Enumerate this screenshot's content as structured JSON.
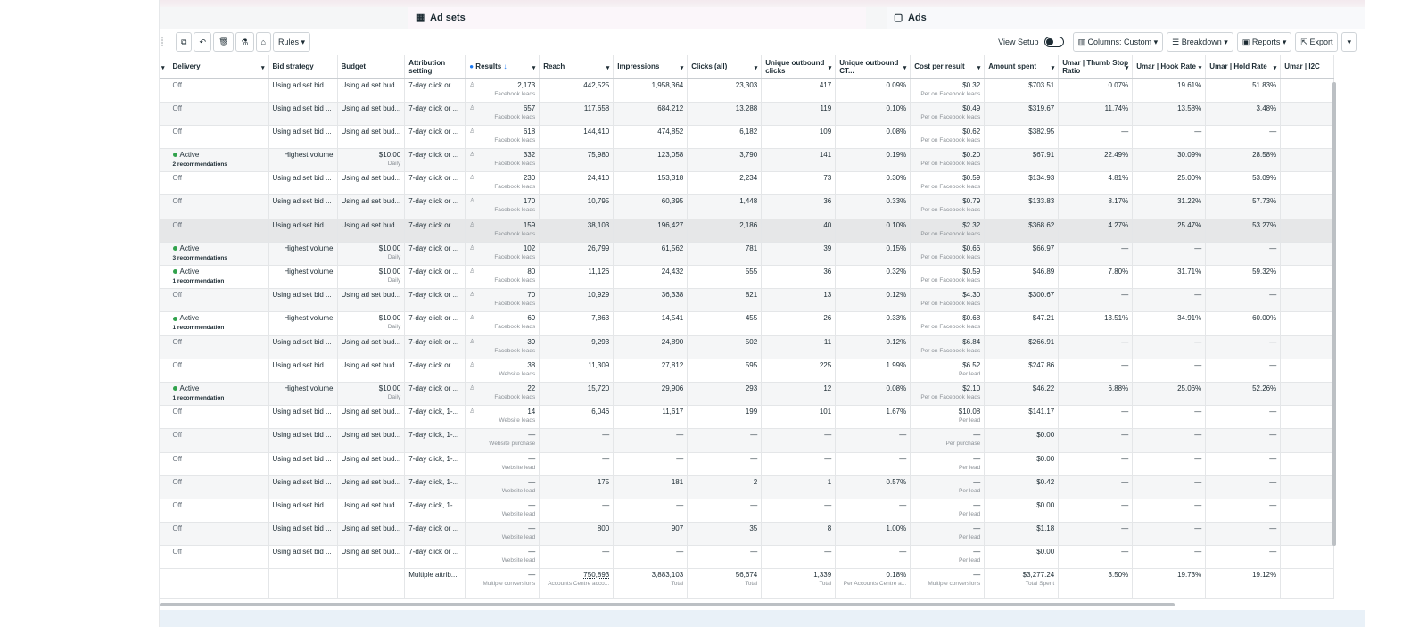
{
  "tabs": {
    "adsets_label": "Ad sets",
    "ads_label": "Ads"
  },
  "toolbar": {
    "rules_label": "Rules",
    "view_setup_label": "View Setup",
    "columns_label": "Columns: Custom",
    "breakdown_label": "Breakdown",
    "reports_label": "Reports",
    "export_label": "Export"
  },
  "headers": [
    "Delivery",
    "Bid strategy",
    "Budget",
    "Attribution setting",
    "Results",
    "Reach",
    "Impressions",
    "Clicks (all)",
    "Unique outbound clicks",
    "Unique outbound CT...",
    "Cost per result",
    "Amount spent",
    "Umar | Thumb Stop Ratio",
    "Umar | Hook Rate",
    "Umar | Hold Rate",
    "Umar | I2C"
  ],
  "rows": [
    {
      "delivery": "Off",
      "active": false,
      "reco": "",
      "bid": "Using ad set bid ...",
      "budget": "Using ad set bud...",
      "budget_sub": "",
      "attr": "7-day click or ...",
      "results": "2,173",
      "results_sub": "Facebook leads",
      "reach": "442,525",
      "impr": "1,958,364",
      "clicks": "23,303",
      "uoc": "417",
      "uctr": "0.09%",
      "cpr": "$0.32",
      "cpr_sub": "Per on Facebook leads",
      "spent": "$703.51",
      "thumb": "0.07%",
      "hook": "19.61%",
      "hold": "51.83%"
    },
    {
      "delivery": "Off",
      "active": false,
      "reco": "",
      "bid": "Using ad set bid ...",
      "budget": "Using ad set bud...",
      "budget_sub": "",
      "attr": "7-day click or ...",
      "results": "657",
      "results_sub": "Facebook leads",
      "reach": "117,658",
      "impr": "684,212",
      "clicks": "13,288",
      "uoc": "119",
      "uctr": "0.10%",
      "cpr": "$0.49",
      "cpr_sub": "Per on Facebook leads",
      "spent": "$319.67",
      "thumb": "11.74%",
      "hook": "13.58%",
      "hold": "3.48%"
    },
    {
      "delivery": "Off",
      "active": false,
      "reco": "",
      "bid": "Using ad set bid ...",
      "budget": "Using ad set bud...",
      "budget_sub": "",
      "attr": "7-day click or ...",
      "results": "618",
      "results_sub": "Facebook leads",
      "reach": "144,410",
      "impr": "474,852",
      "clicks": "6,182",
      "uoc": "109",
      "uctr": "0.08%",
      "cpr": "$0.62",
      "cpr_sub": "Per on Facebook leads",
      "spent": "$382.95",
      "thumb": "—",
      "hook": "—",
      "hold": "—"
    },
    {
      "delivery": "Active",
      "active": true,
      "reco": "2 recommendations",
      "bid": "Highest volume",
      "budget": "$10.00",
      "budget_sub": "Daily",
      "attr": "7-day click or ...",
      "results": "332",
      "results_sub": "Facebook leads",
      "reach": "75,980",
      "impr": "123,058",
      "clicks": "3,790",
      "uoc": "141",
      "uctr": "0.19%",
      "cpr": "$0.20",
      "cpr_sub": "Per on Facebook leads",
      "spent": "$67.91",
      "thumb": "22.49%",
      "hook": "30.09%",
      "hold": "28.58%"
    },
    {
      "delivery": "Off",
      "active": false,
      "reco": "",
      "bid": "Using ad set bid ...",
      "budget": "Using ad set bud...",
      "budget_sub": "",
      "attr": "7-day click or ...",
      "results": "230",
      "results_sub": "Facebook leads",
      "reach": "24,410",
      "impr": "153,318",
      "clicks": "2,234",
      "uoc": "73",
      "uctr": "0.30%",
      "cpr": "$0.59",
      "cpr_sub": "Per on Facebook leads",
      "spent": "$134.93",
      "thumb": "4.81%",
      "hook": "25.00%",
      "hold": "53.09%"
    },
    {
      "delivery": "Off",
      "active": false,
      "reco": "",
      "bid": "Using ad set bid ...",
      "budget": "Using ad set bud...",
      "budget_sub": "",
      "attr": "7-day click or ...",
      "results": "170",
      "results_sub": "Facebook leads",
      "reach": "10,795",
      "impr": "60,395",
      "clicks": "1,448",
      "uoc": "36",
      "uctr": "0.33%",
      "cpr": "$0.79",
      "cpr_sub": "Per on Facebook leads",
      "spent": "$133.83",
      "thumb": "8.17%",
      "hook": "31.22%",
      "hold": "57.73%"
    },
    {
      "delivery": "Off",
      "active": false,
      "reco": "",
      "bid": "Using ad set bid ...",
      "budget": "Using ad set bud...",
      "budget_sub": "",
      "attr": "7-day click or ...",
      "results": "159",
      "results_sub": "Facebook leads",
      "reach": "38,103",
      "impr": "196,427",
      "clicks": "2,186",
      "uoc": "40",
      "uctr": "0.10%",
      "cpr": "$2.32",
      "cpr_sub": "Per on Facebook leads",
      "spent": "$368.62",
      "thumb": "4.27%",
      "hook": "25.47%",
      "hold": "53.27%"
    },
    {
      "delivery": "Active",
      "active": true,
      "reco": "3 recommendations",
      "bid": "Highest volume",
      "budget": "$10.00",
      "budget_sub": "Daily",
      "attr": "7-day click or ...",
      "results": "102",
      "results_sub": "Facebook leads",
      "reach": "26,799",
      "impr": "61,562",
      "clicks": "781",
      "uoc": "39",
      "uctr": "0.15%",
      "cpr": "$0.66",
      "cpr_sub": "Per on Facebook leads",
      "spent": "$66.97",
      "thumb": "—",
      "hook": "—",
      "hold": "—"
    },
    {
      "delivery": "Active",
      "active": true,
      "reco": "1 recommendation",
      "bid": "Highest volume",
      "budget": "$10.00",
      "budget_sub": "Daily",
      "attr": "7-day click or ...",
      "results": "80",
      "results_sub": "Facebook leads",
      "reach": "11,126",
      "impr": "24,432",
      "clicks": "555",
      "uoc": "36",
      "uctr": "0.32%",
      "cpr": "$0.59",
      "cpr_sub": "Per on Facebook leads",
      "spent": "$46.89",
      "thumb": "7.80%",
      "hook": "31.71%",
      "hold": "59.32%"
    },
    {
      "delivery": "Off",
      "active": false,
      "reco": "",
      "bid": "Using ad set bid ...",
      "budget": "Using ad set bud...",
      "budget_sub": "",
      "attr": "7-day click or ...",
      "results": "70",
      "results_sub": "Facebook leads",
      "reach": "10,929",
      "impr": "36,338",
      "clicks": "821",
      "uoc": "13",
      "uctr": "0.12%",
      "cpr": "$4.30",
      "cpr_sub": "Per on Facebook leads",
      "spent": "$300.67",
      "thumb": "—",
      "hook": "—",
      "hold": "—"
    },
    {
      "delivery": "Active",
      "active": true,
      "reco": "1 recommendation",
      "bid": "Highest volume",
      "budget": "$10.00",
      "budget_sub": "Daily",
      "attr": "7-day click or ...",
      "results": "69",
      "results_sub": "Facebook leads",
      "reach": "7,863",
      "impr": "14,541",
      "clicks": "455",
      "uoc": "26",
      "uctr": "0.33%",
      "cpr": "$0.68",
      "cpr_sub": "Per on Facebook leads",
      "spent": "$47.21",
      "thumb": "13.51%",
      "hook": "34.91%",
      "hold": "60.00%"
    },
    {
      "delivery": "Off",
      "active": false,
      "reco": "",
      "bid": "Using ad set bid ...",
      "budget": "Using ad set bud...",
      "budget_sub": "",
      "attr": "7-day click or ...",
      "results": "39",
      "results_sub": "Facebook leads",
      "reach": "9,293",
      "impr": "24,890",
      "clicks": "502",
      "uoc": "11",
      "uctr": "0.12%",
      "cpr": "$6.84",
      "cpr_sub": "Per on Facebook leads",
      "spent": "$266.91",
      "thumb": "—",
      "hook": "—",
      "hold": "—"
    },
    {
      "delivery": "Off",
      "active": false,
      "reco": "",
      "bid": "Using ad set bid ...",
      "budget": "Using ad set bud...",
      "budget_sub": "",
      "attr": "7-day click or ...",
      "results": "38",
      "results_sub": "Website leads",
      "reach": "11,309",
      "impr": "27,812",
      "clicks": "595",
      "uoc": "225",
      "uctr": "1.99%",
      "cpr": "$6.52",
      "cpr_sub": "Per lead",
      "spent": "$247.86",
      "thumb": "—",
      "hook": "—",
      "hold": "—"
    },
    {
      "delivery": "Active",
      "active": true,
      "reco": "1 recommendation",
      "bid": "Highest volume",
      "budget": "$10.00",
      "budget_sub": "Daily",
      "attr": "7-day click or ...",
      "results": "22",
      "results_sub": "Facebook leads",
      "reach": "15,720",
      "impr": "29,906",
      "clicks": "293",
      "uoc": "12",
      "uctr": "0.08%",
      "cpr": "$2.10",
      "cpr_sub": "Per on Facebook leads",
      "spent": "$46.22",
      "thumb": "6.88%",
      "hook": "25.06%",
      "hold": "52.26%"
    },
    {
      "delivery": "Off",
      "active": false,
      "reco": "",
      "bid": "Using ad set bid ...",
      "budget": "Using ad set bud...",
      "budget_sub": "",
      "attr": "7-day click, 1-...",
      "results": "14",
      "results_sub": "Website leads",
      "reach": "6,046",
      "impr": "11,617",
      "clicks": "199",
      "uoc": "101",
      "uctr": "1.67%",
      "cpr": "$10.08",
      "cpr_sub": "Per lead",
      "spent": "$141.17",
      "thumb": "—",
      "hook": "—",
      "hold": "—"
    },
    {
      "delivery": "Off",
      "active": false,
      "reco": "",
      "bid": "Using ad set bid ...",
      "budget": "Using ad set bud...",
      "budget_sub": "",
      "attr": "7-day click, 1-...",
      "results": "—",
      "results_sub": "Website purchase",
      "reach": "—",
      "impr": "—",
      "clicks": "—",
      "uoc": "—",
      "uctr": "—",
      "cpr": "—",
      "cpr_sub": "Per purchase",
      "spent": "$0.00",
      "thumb": "—",
      "hook": "—",
      "hold": "—"
    },
    {
      "delivery": "Off",
      "active": false,
      "reco": "",
      "bid": "Using ad set bid ...",
      "budget": "Using ad set bud...",
      "budget_sub": "",
      "attr": "7-day click, 1-...",
      "results": "—",
      "results_sub": "Website lead",
      "reach": "—",
      "impr": "—",
      "clicks": "—",
      "uoc": "—",
      "uctr": "—",
      "cpr": "—",
      "cpr_sub": "Per lead",
      "spent": "$0.00",
      "thumb": "—",
      "hook": "—",
      "hold": "—"
    },
    {
      "delivery": "Off",
      "active": false,
      "reco": "",
      "bid": "Using ad set bid ...",
      "budget": "Using ad set bud...",
      "budget_sub": "",
      "attr": "7-day click, 1-...",
      "results": "—",
      "results_sub": "Website lead",
      "reach": "175",
      "impr": "181",
      "clicks": "2",
      "uoc": "1",
      "uctr": "0.57%",
      "cpr": "—",
      "cpr_sub": "Per lead",
      "spent": "$0.42",
      "thumb": "—",
      "hook": "—",
      "hold": "—"
    },
    {
      "delivery": "Off",
      "active": false,
      "reco": "",
      "bid": "Using ad set bid ...",
      "budget": "Using ad set bud...",
      "budget_sub": "",
      "attr": "7-day click, 1-...",
      "results": "—",
      "results_sub": "Website lead",
      "reach": "—",
      "impr": "—",
      "clicks": "—",
      "uoc": "—",
      "uctr": "—",
      "cpr": "—",
      "cpr_sub": "Per lead",
      "spent": "$0.00",
      "thumb": "—",
      "hook": "—",
      "hold": "—"
    },
    {
      "delivery": "Off",
      "active": false,
      "reco": "",
      "bid": "Using ad set bid ...",
      "budget": "Using ad set bud...",
      "budget_sub": "",
      "attr": "7-day click or ...",
      "results": "—",
      "results_sub": "Website lead",
      "reach": "800",
      "impr": "907",
      "clicks": "35",
      "uoc": "8",
      "uctr": "1.00%",
      "cpr": "—",
      "cpr_sub": "Per lead",
      "spent": "$1.18",
      "thumb": "—",
      "hook": "—",
      "hold": "—"
    },
    {
      "delivery": "Off",
      "active": false,
      "reco": "",
      "bid": "Using ad set bid ...",
      "budget": "Using ad set bud...",
      "budget_sub": "",
      "attr": "7-day click or ...",
      "results": "—",
      "results_sub": "Website lead",
      "reach": "—",
      "impr": "—",
      "clicks": "—",
      "uoc": "—",
      "uctr": "—",
      "cpr": "—",
      "cpr_sub": "Per lead",
      "spent": "$0.00",
      "thumb": "—",
      "hook": "—",
      "hold": "—"
    }
  ],
  "totals": {
    "attr": "Multiple attrib...",
    "results": "—",
    "results_sub": "Multiple conversions",
    "reach": "750,893",
    "reach_sub": "Accounts Centre acco...",
    "impr": "3,883,103",
    "impr_sub": "Total",
    "clicks": "56,674",
    "clicks_sub": "Total",
    "uoc": "1,339",
    "uoc_sub": "Total",
    "uctr": "0.18%",
    "uctr_sub": "Per Accounts Centre a...",
    "cpr": "—",
    "cpr_sub": "Multiple conversions",
    "spent": "$3,277.24",
    "spent_sub": "Total Spent",
    "thumb": "3.50%",
    "hook": "19.73%",
    "hold": "19.12%"
  },
  "colors": {
    "active_dot": "#31a24c",
    "highlight_row": "#e6e7e8"
  }
}
